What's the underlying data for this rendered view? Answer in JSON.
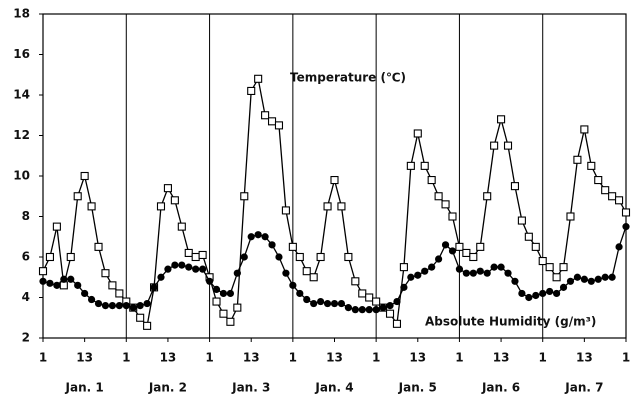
{
  "chart_data": {
    "type": "line",
    "annotations": [
      "Temperature (℃)",
      "Absolute Humidity (g/m³)"
    ],
    "x": [
      0,
      2,
      4,
      6,
      8,
      10,
      12,
      14,
      16,
      18,
      20,
      22,
      24,
      26,
      28,
      30,
      32,
      34,
      36,
      38,
      40,
      42,
      44,
      46,
      48,
      50,
      52,
      54,
      56,
      58,
      60,
      62,
      64,
      66,
      68,
      70,
      72,
      74,
      76,
      78,
      80,
      82,
      84,
      86,
      88,
      90,
      92,
      94,
      96,
      98,
      100,
      102,
      104,
      106,
      108,
      110,
      112,
      114,
      116,
      118,
      120,
      122,
      124,
      126,
      128,
      130,
      132,
      134,
      136,
      138,
      140,
      142,
      144,
      146,
      148,
      150,
      152,
      154,
      156,
      158,
      160,
      162,
      164,
      166,
      168
    ],
    "series": [
      {
        "name": "Temperature (℃)",
        "color": "#000000",
        "marker": "square",
        "values": [
          5.3,
          6.0,
          7.5,
          4.6,
          6.0,
          9.0,
          10.0,
          8.5,
          6.5,
          5.2,
          4.6,
          4.2,
          3.8,
          3.5,
          3.0,
          2.6,
          4.5,
          8.5,
          9.4,
          8.8,
          7.5,
          6.2,
          6.0,
          6.1,
          5.0,
          3.8,
          3.2,
          2.8,
          3.5,
          9.0,
          14.2,
          14.8,
          13.0,
          12.7,
          12.5,
          8.3,
          6.5,
          6.0,
          5.3,
          5.0,
          6.0,
          8.5,
          9.8,
          8.5,
          6.0,
          4.8,
          4.2,
          4.0,
          3.8,
          3.5,
          3.2,
          2.7,
          5.5,
          10.5,
          12.1,
          10.5,
          9.8,
          9.0,
          8.6,
          8.0,
          6.5,
          6.2,
          6.0,
          6.5,
          9.0,
          11.5,
          12.8,
          11.5,
          9.5,
          7.8,
          7.0,
          6.5,
          5.8,
          5.5,
          5.0,
          5.5,
          8.0,
          10.8,
          12.3,
          10.5,
          9.8,
          9.3,
          9.0,
          8.8,
          8.2
        ]
      },
      {
        "name": "Absolute Humidity (g/m³)",
        "color": "#000000",
        "marker": "circle",
        "values": [
          4.8,
          4.7,
          4.6,
          4.9,
          4.9,
          4.6,
          4.2,
          3.9,
          3.7,
          3.6,
          3.6,
          3.6,
          3.6,
          3.5,
          3.6,
          3.7,
          4.5,
          5.0,
          5.4,
          5.6,
          5.6,
          5.5,
          5.4,
          5.4,
          4.8,
          4.4,
          4.2,
          4.2,
          5.2,
          6.0,
          7.0,
          7.1,
          7.0,
          6.6,
          6.0,
          5.2,
          4.6,
          4.2,
          3.9,
          3.7,
          3.8,
          3.7,
          3.7,
          3.7,
          3.5,
          3.4,
          3.4,
          3.4,
          3.4,
          3.5,
          3.6,
          3.8,
          4.5,
          5.0,
          5.1,
          5.3,
          5.5,
          5.9,
          6.6,
          6.3,
          5.4,
          5.2,
          5.2,
          5.3,
          5.2,
          5.5,
          5.5,
          5.2,
          4.8,
          4.2,
          4.0,
          4.1,
          4.2,
          4.3,
          4.2,
          4.5,
          4.8,
          5.0,
          4.9,
          4.8,
          4.9,
          5.0,
          5.0,
          6.5,
          7.5
        ]
      }
    ],
    "xlim": [
      0,
      168
    ],
    "xticks": [
      {
        "value": 0,
        "label": "1"
      },
      {
        "value": 12,
        "label": "13"
      },
      {
        "value": 24,
        "label": "1"
      },
      {
        "value": 36,
        "label": "13"
      },
      {
        "value": 48,
        "label": "1"
      },
      {
        "value": 60,
        "label": "13"
      },
      {
        "value": 72,
        "label": "1"
      },
      {
        "value": 84,
        "label": "13"
      },
      {
        "value": 96,
        "label": "1"
      },
      {
        "value": 108,
        "label": "13"
      },
      {
        "value": 120,
        "label": "1"
      },
      {
        "value": 132,
        "label": "13"
      },
      {
        "value": 144,
        "label": "1"
      },
      {
        "value": 156,
        "label": "13"
      },
      {
        "value": 168,
        "label": "1"
      }
    ],
    "day_labels": [
      "Jan. 1",
      "Jan. 2",
      "Jan. 3",
      "Jan. 4",
      "Jan. 5",
      "Jan. 6",
      "Jan. 7"
    ],
    "ylim": [
      2,
      18
    ],
    "yticks": [
      2,
      4,
      6,
      8,
      10,
      12,
      14,
      16,
      18
    ],
    "grid": true
  }
}
